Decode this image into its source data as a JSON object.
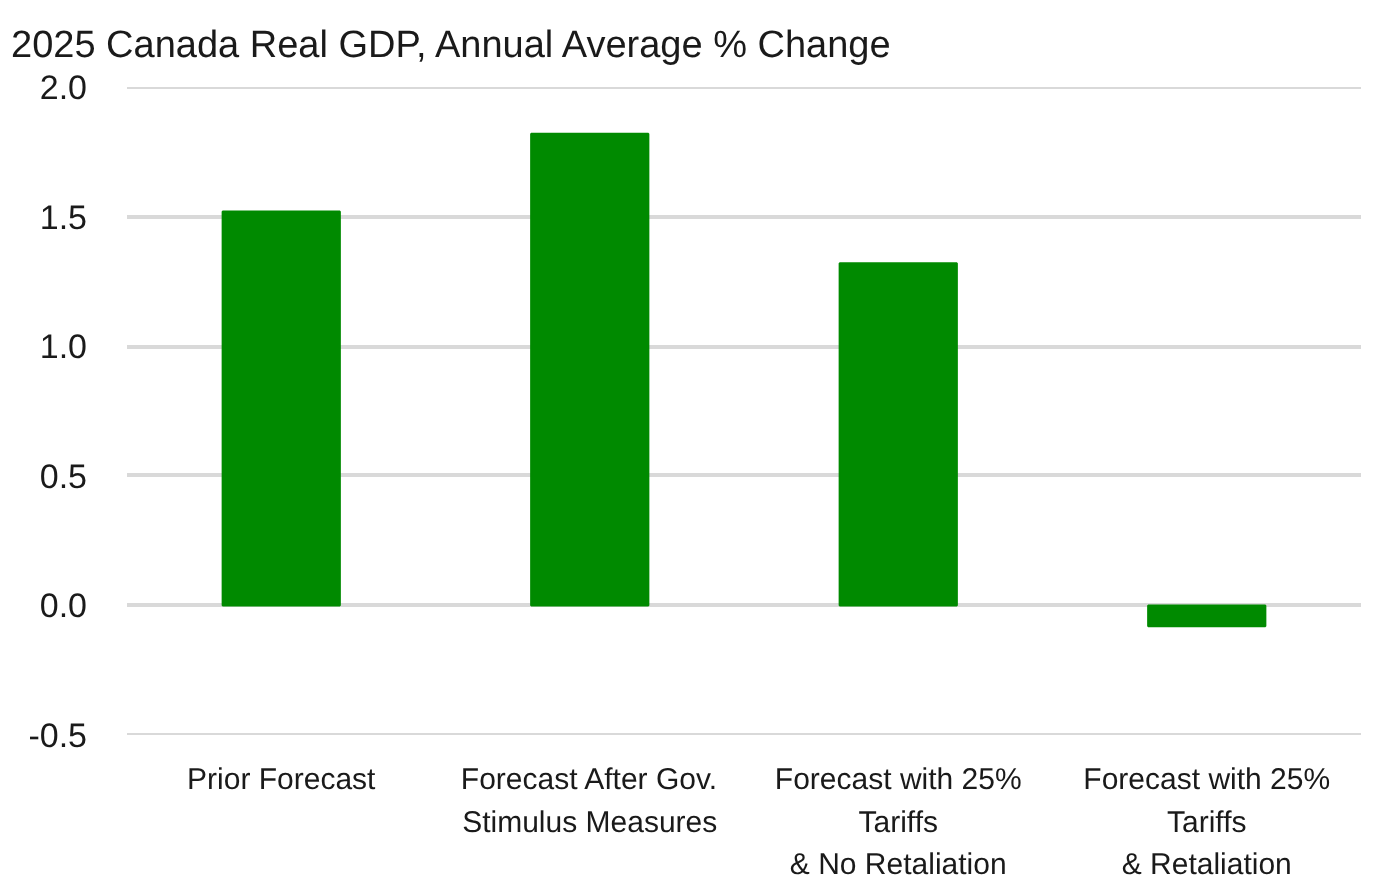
{
  "chart_data": {
    "type": "bar",
    "title": "2025 Canada Real GDP, Annual Average % Change",
    "categories": [
      "Prior Forecast",
      "Forecast After Gov.\nStimulus Measures",
      "Forecast with 25%\nTariffs\n& No Retaliation",
      "Forecast with 25%\nTariffs\n& Retaliation"
    ],
    "values": [
      1.52,
      1.82,
      1.32,
      -0.08
    ],
    "color": "#008a00",
    "ylim": [
      -0.5,
      2.0
    ],
    "yticks": [
      -0.5,
      {
        "value": 0,
        "label": "0.0"
      },
      0.5,
      {
        "value": 1,
        "label": "1.0"
      },
      1.5,
      {
        "value": 2,
        "label": "2.0"
      }
    ],
    "grid": "y"
  }
}
